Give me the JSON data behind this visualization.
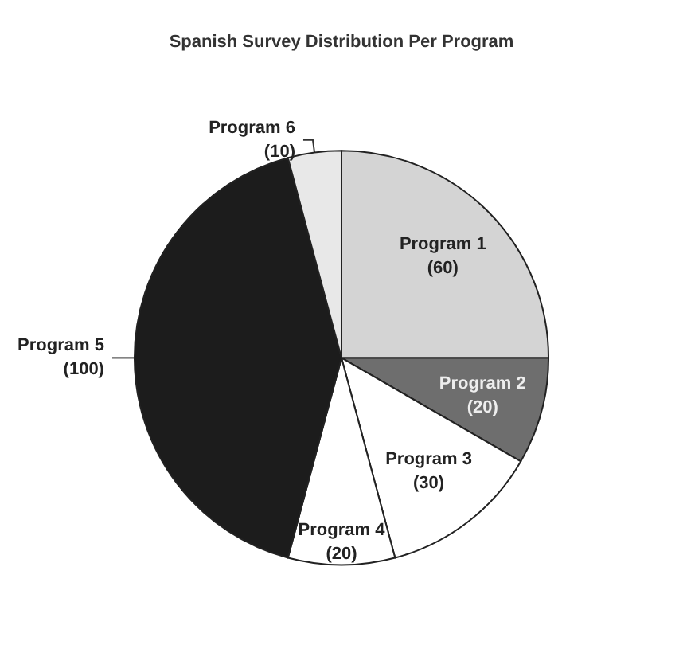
{
  "chart_data": {
    "type": "pie",
    "title": "Spanish Survey Distribution Per Program",
    "categories": [
      "Program 1",
      "Program 2",
      "Program 3",
      "Program 4",
      "Program 5",
      "Program 6"
    ],
    "values": [
      60,
      20,
      30,
      20,
      100,
      10
    ],
    "colors": [
      "#d4d4d4",
      "#6e6e6e",
      "#ffffff",
      "#ffffff",
      "#1c1c1c",
      "#e8e8e8"
    ],
    "value_labels": [
      "(60)",
      "(20)",
      "(30)",
      "(20)",
      "(100)",
      "(10)"
    ],
    "legend": false
  }
}
